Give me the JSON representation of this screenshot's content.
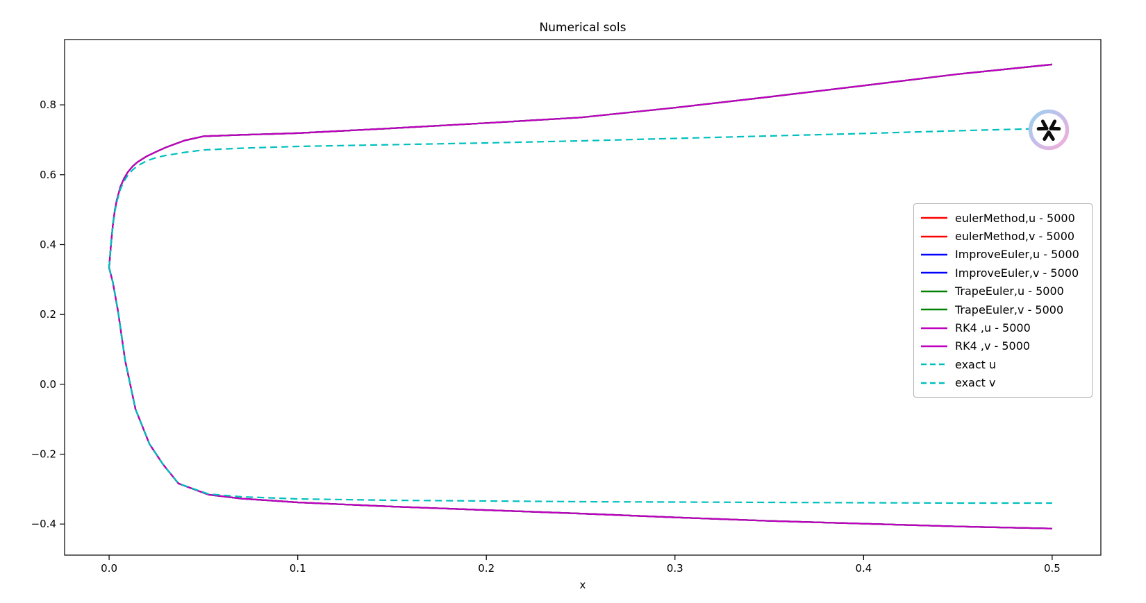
{
  "figure": {
    "title": "Numerical sols",
    "xlabel": "x",
    "background": "#ffffff"
  },
  "watermark": {
    "icon": "tri-y-logo",
    "ring_gradient_start": "#9bd1ee",
    "ring_gradient_end": "#f6aed9",
    "glyph_color": "#0c0c0c"
  },
  "chart_data": {
    "type": "line",
    "title": "Numerical sols",
    "xlabel": "x",
    "ylabel": "",
    "grid": false,
    "legend_position": "center right",
    "xlim": [
      -0.0236,
      0.5258
    ],
    "ylim": [
      -0.489,
      0.987
    ],
    "x_ticks": [
      0.0,
      0.1,
      0.2,
      0.3,
      0.4,
      0.5
    ],
    "x_tick_labels": [
      "0.0",
      "0.1",
      "0.2",
      "0.3",
      "0.4",
      "0.5"
    ],
    "y_ticks": [
      -0.4,
      -0.2,
      0.0,
      0.2,
      0.4,
      0.6,
      0.8
    ],
    "y_tick_labels": [
      "−0.4",
      "−0.2",
      "0.0",
      "0.2",
      "0.4",
      "0.6",
      "0.8"
    ],
    "line_width": 2.2,
    "dash_pattern": "10 6",
    "shared_points": {
      "numerical_u": [
        [
          0,
          0.3333
        ],
        [
          0.001,
          0.401
        ],
        [
          0.002,
          0.456
        ],
        [
          0.003,
          0.496
        ],
        [
          0.004,
          0.526
        ],
        [
          0.006,
          0.566
        ],
        [
          0.008,
          0.59
        ],
        [
          0.01,
          0.608
        ],
        [
          0.0125,
          0.624
        ],
        [
          0.015,
          0.636
        ],
        [
          0.02,
          0.653
        ],
        [
          0.025,
          0.666
        ],
        [
          0.03,
          0.678
        ],
        [
          0.04,
          0.698
        ],
        [
          0.05,
          0.71
        ],
        [
          0.07,
          0.714
        ],
        [
          0.1,
          0.719
        ],
        [
          0.15,
          0.733
        ],
        [
          0.2,
          0.748
        ],
        [
          0.25,
          0.764
        ],
        [
          0.3,
          0.792
        ],
        [
          0.35,
          0.823
        ],
        [
          0.4,
          0.855
        ],
        [
          0.45,
          0.888
        ],
        [
          0.5,
          0.9156
        ]
      ],
      "numerical_v": [
        [
          0,
          0.3333
        ],
        [
          0.002,
          0.292
        ],
        [
          0.0048,
          0.207
        ],
        [
          0.0085,
          0.068
        ],
        [
          0.014,
          -0.071
        ],
        [
          0.0214,
          -0.171
        ],
        [
          0.0287,
          -0.23
        ],
        [
          0.0368,
          -0.284
        ],
        [
          0.0527,
          -0.316
        ],
        [
          0.07,
          -0.327
        ],
        [
          0.1,
          -0.338
        ],
        [
          0.15,
          -0.35
        ],
        [
          0.2,
          -0.36
        ],
        [
          0.25,
          -0.37
        ],
        [
          0.3,
          -0.381
        ],
        [
          0.35,
          -0.391
        ],
        [
          0.4,
          -0.399
        ],
        [
          0.45,
          -0.407
        ],
        [
          0.5,
          -0.413
        ]
      ],
      "exact_u": [
        [
          0,
          0.3333
        ],
        [
          0.001,
          0.4
        ],
        [
          0.002,
          0.454
        ],
        [
          0.003,
          0.492
        ],
        [
          0.004,
          0.521
        ],
        [
          0.006,
          0.559
        ],
        [
          0.008,
          0.582
        ],
        [
          0.01,
          0.599
        ],
        [
          0.0125,
          0.614
        ],
        [
          0.015,
          0.625
        ],
        [
          0.02,
          0.64
        ],
        [
          0.025,
          0.649
        ],
        [
          0.03,
          0.655
        ],
        [
          0.04,
          0.664
        ],
        [
          0.05,
          0.671
        ],
        [
          0.07,
          0.676
        ],
        [
          0.1,
          0.681
        ],
        [
          0.15,
          0.686
        ],
        [
          0.2,
          0.691
        ],
        [
          0.25,
          0.697
        ],
        [
          0.3,
          0.704
        ],
        [
          0.35,
          0.711
        ],
        [
          0.4,
          0.718
        ],
        [
          0.45,
          0.726
        ],
        [
          0.5,
          0.733
        ]
      ],
      "exact_v": [
        [
          0,
          0.3333
        ],
        [
          0.002,
          0.292
        ],
        [
          0.0048,
          0.207
        ],
        [
          0.0085,
          0.068
        ],
        [
          0.014,
          -0.071
        ],
        [
          0.0214,
          -0.171
        ],
        [
          0.0287,
          -0.23
        ],
        [
          0.0368,
          -0.284
        ],
        [
          0.0527,
          -0.314
        ],
        [
          0.07,
          -0.322
        ],
        [
          0.1,
          -0.328
        ],
        [
          0.15,
          -0.332
        ],
        [
          0.2,
          -0.334
        ],
        [
          0.25,
          -0.336
        ],
        [
          0.3,
          -0.337
        ],
        [
          0.35,
          -0.338
        ],
        [
          0.4,
          -0.339
        ],
        [
          0.45,
          -0.34
        ],
        [
          0.5,
          -0.34
        ]
      ]
    },
    "series": [
      {
        "name": "eulerMethod,u - 5000",
        "color": "#ff0000",
        "dash": "solid",
        "points_ref": "numerical_u"
      },
      {
        "name": "eulerMethod,v - 5000",
        "color": "#ff0000",
        "dash": "solid",
        "points_ref": "numerical_v"
      },
      {
        "name": "ImproveEuler,u - 5000",
        "color": "#0000ff",
        "dash": "solid",
        "points_ref": "numerical_u"
      },
      {
        "name": "ImproveEuler,v - 5000",
        "color": "#0000ff",
        "dash": "solid",
        "points_ref": "numerical_v"
      },
      {
        "name": "TrapeEuler,u - 5000",
        "color": "#008000",
        "dash": "solid",
        "points_ref": "numerical_u"
      },
      {
        "name": "TrapeEuler,v - 5000",
        "color": "#008000",
        "dash": "solid",
        "points_ref": "numerical_v"
      },
      {
        "name": "RK4 ,u - 5000",
        "color": "#bf00bf",
        "dash": "solid",
        "points_ref": "numerical_u"
      },
      {
        "name": "RK4 ,v - 5000",
        "color": "#bf00bf",
        "dash": "solid",
        "points_ref": "numerical_v"
      },
      {
        "name": "exact u",
        "color": "#00bfbf",
        "dash": "dashed",
        "points_ref": "exact_u"
      },
      {
        "name": "exact v",
        "color": "#00bfbf",
        "dash": "dashed",
        "points_ref": "exact_v"
      }
    ]
  }
}
